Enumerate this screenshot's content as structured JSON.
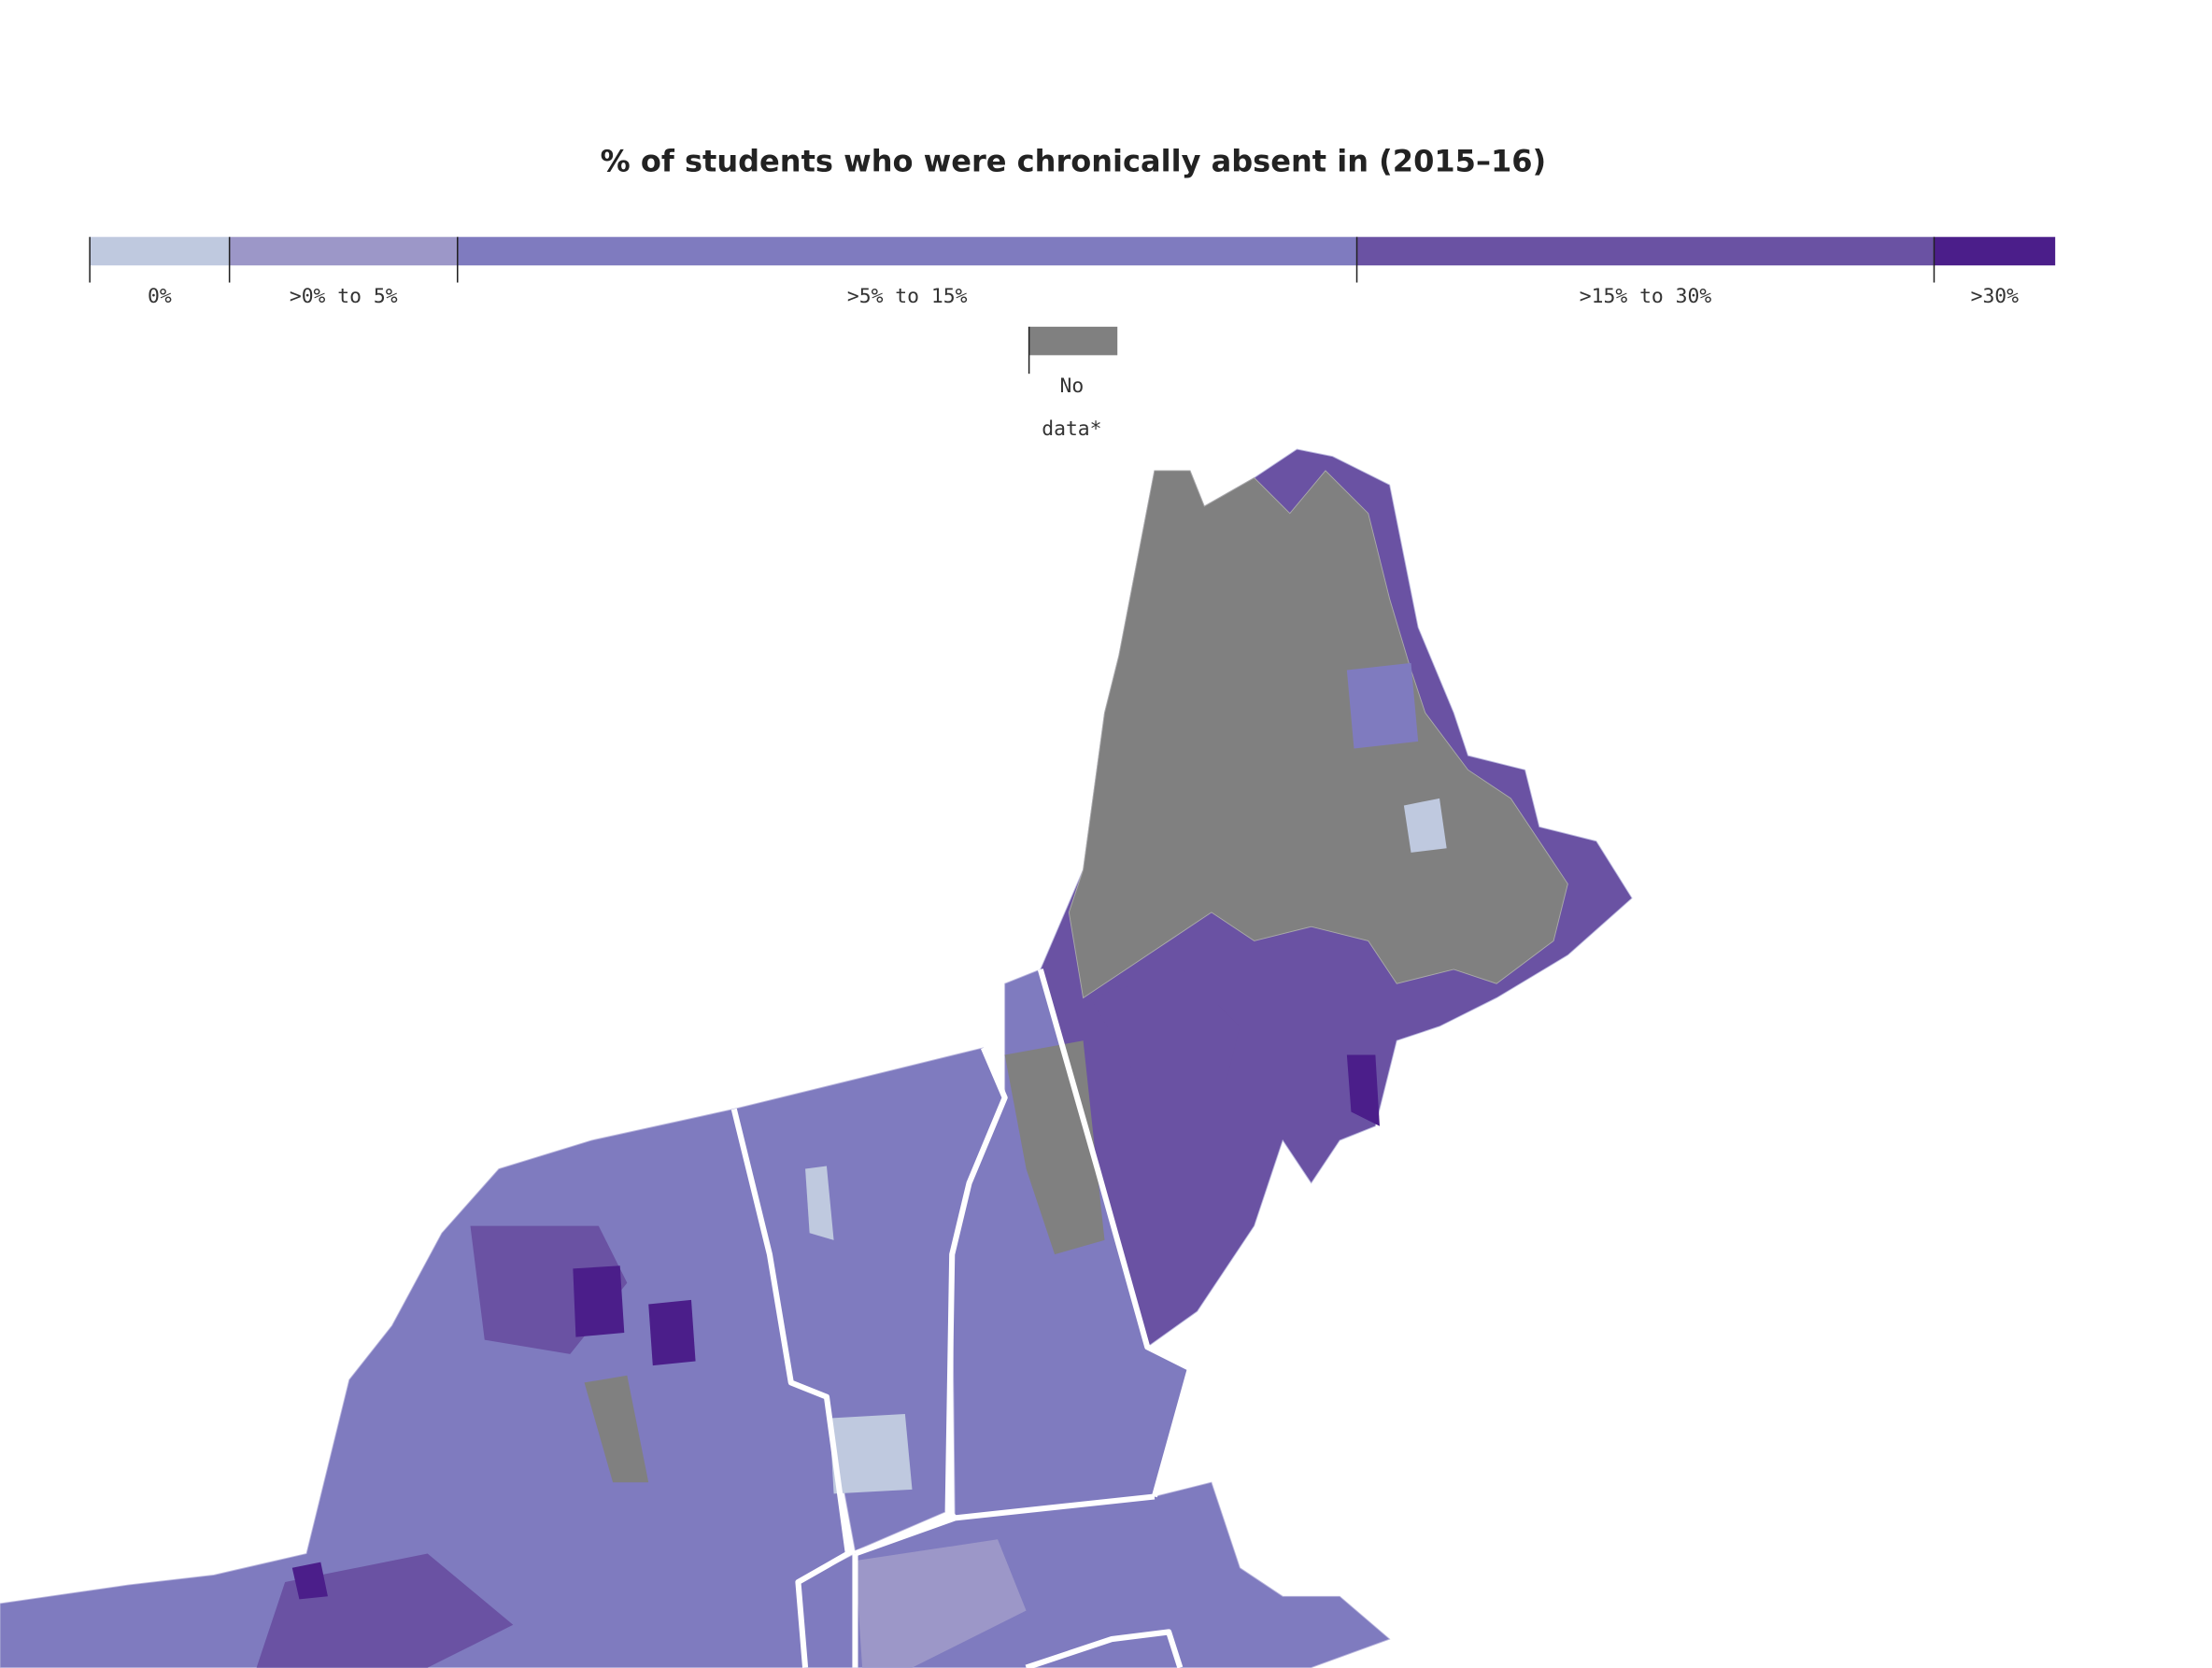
{
  "title": "% of students who were chronically absent in (2015–16)",
  "legend": [
    {
      "label": "0%",
      "color": "#bfc9df"
    },
    {
      "label": ">0% to 5%",
      "color": "#9c97c8"
    },
    {
      "label": ">5% to 15%",
      "color": "#7f7bbf"
    },
    {
      "label": ">15% to 30%",
      "color": "#6a52a3"
    },
    {
      "label": ">30%",
      "color": "#4b1e8a"
    }
  ],
  "no_data": {
    "label": "No data*",
    "color": "#808080"
  }
}
